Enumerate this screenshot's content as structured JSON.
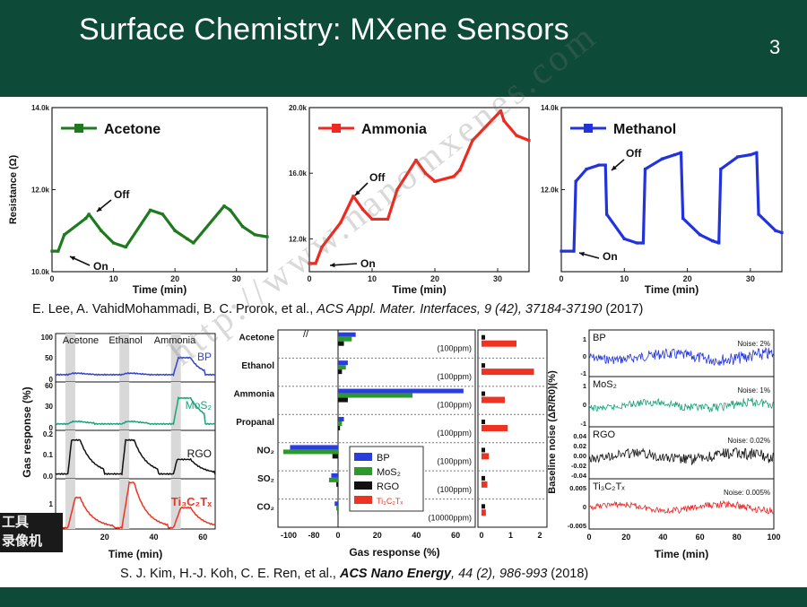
{
  "slide": {
    "title": "Surface Chemistry: MXene Sensors",
    "number": "3"
  },
  "citations": {
    "top": {
      "authors": "E. Lee, A. VahidMohammadi, B. C. Prorok, et al., ",
      "journal": "ACS Appl. Mater. Interfaces, 9 (42), 37184-37190",
      "year": " (2017)"
    },
    "bottom": {
      "authors": "S. J. Kim, H.-J. Koh, C. E. Ren, et al., ",
      "journal_bold": "ACS Nano Energy",
      "journal_rest": ", 44 (2), 986-993",
      "year": " (2018)"
    }
  },
  "watermark": "http://www.nanomxenes.com",
  "overlay_label": "工具\n录像机",
  "chart_data": [
    {
      "type": "line",
      "legend": "Acetone",
      "color": "#1f7a1f",
      "xlabel": "Time (min)",
      "ylabel": "Resistance (Ω)",
      "xticks": [
        "0",
        "10",
        "20",
        "30"
      ],
      "yticks": [
        "10.0k",
        "12.0k",
        "14.0k"
      ],
      "xlim": [
        0,
        35
      ],
      "ylim": [
        10000,
        14000
      ],
      "annotations": [
        "Off",
        "On"
      ],
      "x": [
        0,
        1,
        2,
        5.5,
        6,
        8,
        10,
        12,
        16,
        18,
        20,
        22,
        23,
        28,
        29,
        31,
        33,
        35
      ],
      "y": [
        10500,
        10500,
        10900,
        11300,
        11400,
        11000,
        10700,
        10600,
        11500,
        11400,
        11000,
        10800,
        10700,
        11600,
        11500,
        11100,
        10900,
        10850
      ]
    },
    {
      "type": "line",
      "legend": "Ammonia",
      "color": "#ee2a1f",
      "xlabel": "Time (min)",
      "xticks": [
        "0",
        "10",
        "20",
        "30"
      ],
      "yticks": [
        "12.0k",
        "16.0k",
        "20.0k"
      ],
      "xlim": [
        0,
        35
      ],
      "ylim": [
        10000,
        20000
      ],
      "annotations": [
        "Off",
        "On"
      ],
      "x": [
        0,
        1,
        2,
        5,
        7,
        8.5,
        10,
        12.5,
        14,
        17,
        18.5,
        20,
        23,
        24,
        26,
        30.5,
        31,
        33,
        35
      ],
      "y": [
        10500,
        10500,
        11500,
        13000,
        14600,
        13800,
        13200,
        13200,
        15000,
        16800,
        16000,
        15500,
        15800,
        16200,
        18000,
        19800,
        19200,
        18300,
        18000
      ]
    },
    {
      "type": "line",
      "legend": "Methanol",
      "color": "#2233dd",
      "xlabel": "Time (min)",
      "xticks": [
        "0",
        "10",
        "20",
        "30"
      ],
      "yticks": [
        "12.0k",
        "14.0k"
      ],
      "xlim": [
        0,
        35
      ],
      "ylim": [
        10000,
        14000
      ],
      "annotations": [
        "Off",
        "On"
      ],
      "x": [
        0,
        2,
        2.3,
        4,
        6,
        7,
        7.2,
        10,
        12,
        13,
        13.3,
        16,
        18,
        19,
        19.3,
        22,
        24,
        25,
        25.3,
        28,
        30,
        31,
        31.3,
        34,
        35
      ],
      "y": [
        10500,
        10500,
        12200,
        12500,
        12600,
        12600,
        11400,
        10800,
        10700,
        10700,
        12500,
        12750,
        12850,
        12900,
        11300,
        10900,
        10750,
        10700,
        12500,
        12800,
        12850,
        12900,
        11400,
        11000,
        10950
      ]
    },
    {
      "type": "line",
      "xlabel": "Time (min)",
      "ylabel": "Gas response (%)",
      "xticks": [
        "0",
        "20",
        "40",
        "60"
      ],
      "xlim": [
        0,
        65
      ],
      "exposure_labels": [
        "Acetone",
        "Ethanol",
        "Ammonia"
      ],
      "series": [
        {
          "name": "BP",
          "color": "#3344cc",
          "yticks": [
            "0",
            "50",
            "100"
          ],
          "ylim": [
            0,
            100
          ]
        },
        {
          "name": "MoS2",
          "color": "#1aa37a",
          "yticks": [
            "0",
            "30",
            "60"
          ],
          "ylim": [
            0,
            60
          ]
        },
        {
          "name": "RGO",
          "color": "#111111",
          "yticks": [
            "0.0",
            "0.1",
            "0.2"
          ],
          "ylim": [
            0,
            0.2
          ]
        },
        {
          "name": "Ti3C2Tx",
          "color": "#ee3322",
          "yticks": [
            "0",
            "1"
          ],
          "ylim": [
            0,
            2
          ]
        }
      ]
    },
    {
      "type": "bar",
      "xlabel": "Gas response (%)",
      "categories": [
        "Acetone",
        "Ethanol",
        "Ammonia",
        "Propanal",
        "NO2",
        "SO2",
        "CO2"
      ],
      "concentrations": [
        "(100ppm)",
        "(100ppm)",
        "(100ppm)",
        "(100ppm)",
        "(100ppm)",
        "(100ppm)",
        "(10000ppm)"
      ],
      "xticks_left": [
        "-100",
        "-80",
        "0",
        "20",
        "40",
        "60"
      ],
      "xticks_right": [
        "0",
        "1",
        "2"
      ],
      "series": [
        {
          "name": "BP",
          "color": "#2a3ee0",
          "values": [
            9,
            5,
            64,
            3,
            -85,
            -12,
            -6
          ]
        },
        {
          "name": "MoS2",
          "color": "#2a9a2a",
          "values": [
            7,
            4,
            38,
            2,
            -97,
            -16,
            -3
          ]
        },
        {
          "name": "RGO",
          "color": "#111111",
          "values": [
            3,
            2,
            5,
            1,
            -10,
            -3,
            -1
          ]
        },
        {
          "name": "Ti3C2Tx",
          "color": "#ee3322",
          "values": [
            1.2,
            1.8,
            0.8,
            0.9,
            0.25,
            0.2,
            0.15
          ]
        }
      ]
    },
    {
      "type": "line",
      "xlabel": "Time (min)",
      "ylabel": "Baseline noise (ΔR/R0)(%)",
      "xticks": [
        "0",
        "20",
        "40",
        "60",
        "80",
        "100"
      ],
      "xlim": [
        0,
        100
      ],
      "series": [
        {
          "name": "BP",
          "color": "#2233dd",
          "noise": "Noise: 2%",
          "yticks": [
            "1",
            "0",
            "-1"
          ]
        },
        {
          "name": "MoS2",
          "color": "#1aa37a",
          "noise": "Noise: 1%",
          "yticks": [
            "1",
            "0",
            "-1"
          ]
        },
        {
          "name": "RGO",
          "color": "#111111",
          "noise": "Noise: 0.02%",
          "yticks": [
            "0.04",
            "0.02",
            "0.00",
            "-0.02",
            "-0.04"
          ]
        },
        {
          "name": "Ti3C2Tx",
          "color": "#ee2222",
          "noise": "Noise: 0.005%",
          "yticks": [
            "0.005",
            "0",
            "-0.005"
          ]
        }
      ]
    }
  ]
}
